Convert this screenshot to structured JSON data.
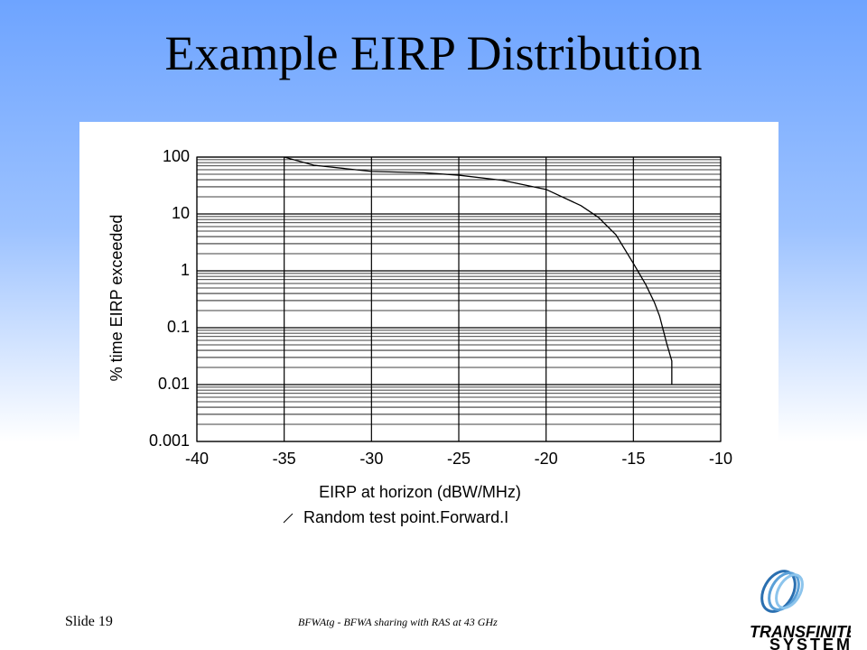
{
  "slide": {
    "title": "Example EIRP Distribution",
    "number": "Slide 19",
    "footer": "BFWAtg - BFWA sharing with RAS at 43 GHz",
    "logo": {
      "name": "TRANSFINITE",
      "tagline": "SYSTEMS"
    }
  },
  "chart_data": {
    "type": "line",
    "x_label": "EIRP at horizon (dBW/MHz)",
    "y_label": "% time EIRP exceeded",
    "x": [
      -35,
      -33.3,
      -30,
      -27,
      -25,
      -22.5,
      -20,
      -18,
      -17,
      -16,
      -15,
      -14.3,
      -13.8,
      -13.5,
      -13.1,
      -12.8,
      -12.8
    ],
    "series": [
      {
        "name": "Random test point.Forward.I",
        "color": "#000000",
        "values": [
          100,
          72,
          56,
          53,
          48,
          39,
          27,
          14,
          8.7,
          4.3,
          1.35,
          0.58,
          0.28,
          0.16,
          0.054,
          0.026,
          0.01
        ]
      }
    ],
    "xlim": [
      -40,
      -10
    ],
    "xticks": [
      -40,
      -35,
      -30,
      -25,
      -20,
      -15,
      -10
    ],
    "ylim": [
      0.001,
      100
    ],
    "yticks": [
      0.001,
      0.01,
      0.1,
      1,
      10,
      100
    ],
    "y_scale": "log",
    "grid": true
  }
}
